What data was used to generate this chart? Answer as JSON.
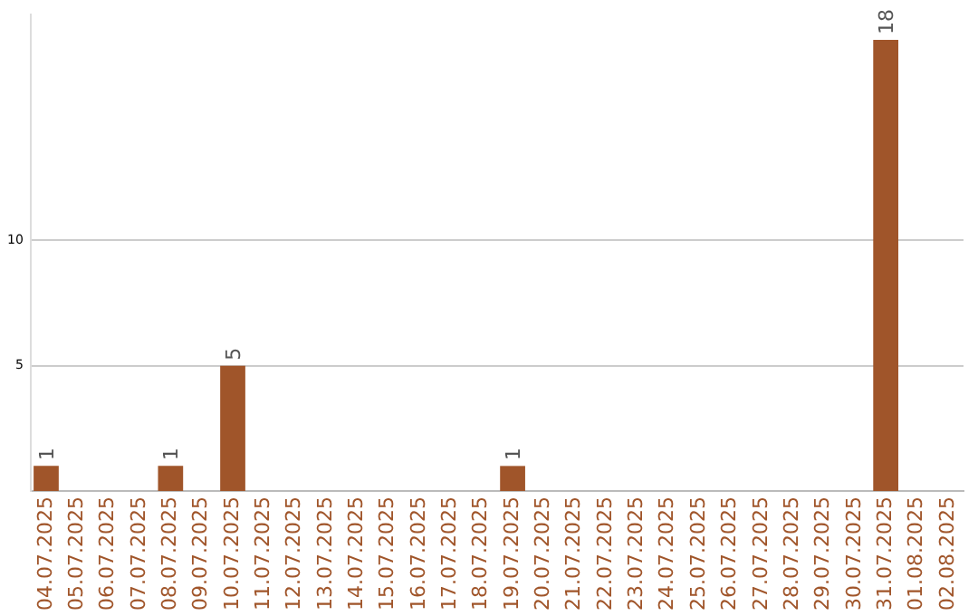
{
  "chart_data": {
    "type": "bar",
    "categories": [
      "04.07.2025",
      "05.07.2025",
      "06.07.2025",
      "07.07.2025",
      "08.07.2025",
      "09.07.2025",
      "10.07.2025",
      "11.07.2025",
      "12.07.2025",
      "13.07.2025",
      "14.07.2025",
      "15.07.2025",
      "16.07.2025",
      "17.07.2025",
      "18.07.2025",
      "19.07.2025",
      "20.07.2025",
      "21.07.2025",
      "22.07.2025",
      "23.07.2025",
      "24.07.2025",
      "25.07.2025",
      "26.07.2025",
      "27.07.2025",
      "28.07.2025",
      "29.07.2025",
      "30.07.2025",
      "31.07.2025",
      "01.08.2025",
      "02.08.2025"
    ],
    "values": [
      1,
      0,
      0,
      0,
      1,
      0,
      5,
      0,
      0,
      0,
      0,
      0,
      0,
      0,
      0,
      1,
      0,
      0,
      0,
      0,
      0,
      0,
      0,
      0,
      0,
      0,
      0,
      18,
      0,
      0
    ],
    "value_labels": [
      "1",
      null,
      null,
      null,
      "1",
      null,
      "5",
      null,
      null,
      null,
      null,
      null,
      null,
      null,
      null,
      "1",
      null,
      null,
      null,
      null,
      null,
      null,
      null,
      null,
      null,
      null,
      null,
      "18",
      null,
      null
    ],
    "color": "#a0552a",
    "ylim": [
      0,
      19
    ],
    "yticks": [
      5,
      10
    ],
    "grid": "y"
  }
}
